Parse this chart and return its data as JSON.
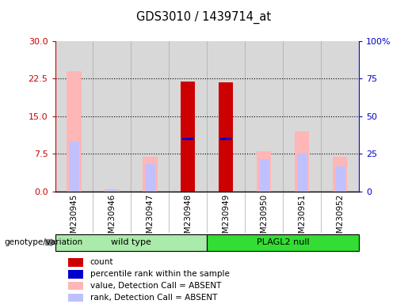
{
  "title": "GDS3010 / 1439714_at",
  "samples": [
    "GSM230945",
    "GSM230946",
    "GSM230947",
    "GSM230948",
    "GSM230949",
    "GSM230950",
    "GSM230951",
    "GSM230952"
  ],
  "count_values": [
    0,
    0,
    0,
    22.0,
    21.8,
    0,
    0,
    0
  ],
  "percentile_values": [
    0,
    0,
    0,
    10.5,
    10.5,
    0,
    0,
    0
  ],
  "absent_value": [
    24.0,
    0.5,
    7.0,
    0,
    0,
    8.0,
    12.0,
    7.0
  ],
  "absent_rank": [
    10.0,
    0.4,
    5.5,
    0,
    0,
    6.5,
    7.5,
    5.0
  ],
  "ylim_left": [
    0,
    30
  ],
  "ylim_right": [
    0,
    100
  ],
  "yticks_left": [
    0,
    7.5,
    15,
    22.5,
    30
  ],
  "yticks_right": [
    0,
    25,
    50,
    75,
    100
  ],
  "groups": [
    {
      "label": "wild type",
      "start": 0,
      "end": 4,
      "color": "#aaeaaa"
    },
    {
      "label": "PLAGL2 null",
      "start": 4,
      "end": 8,
      "color": "#33dd33"
    }
  ],
  "color_count": "#cc0000",
  "color_percentile": "#0000cc",
  "color_absent_value": "#ffb6b6",
  "color_absent_rank": "#c0c0ff",
  "col_bg": "#d8d8d8",
  "plot_bg": "#ffffff",
  "left_axis_color": "#cc0000",
  "right_axis_color": "#0000cc",
  "bar_width": 0.38,
  "group_label": "genotype/variation",
  "legend_items": [
    {
      "color": "#cc0000",
      "label": "count"
    },
    {
      "color": "#0000cc",
      "label": "percentile rank within the sample"
    },
    {
      "color": "#ffb6b6",
      "label": "value, Detection Call = ABSENT"
    },
    {
      "color": "#c0c0ff",
      "label": "rank, Detection Call = ABSENT"
    }
  ]
}
